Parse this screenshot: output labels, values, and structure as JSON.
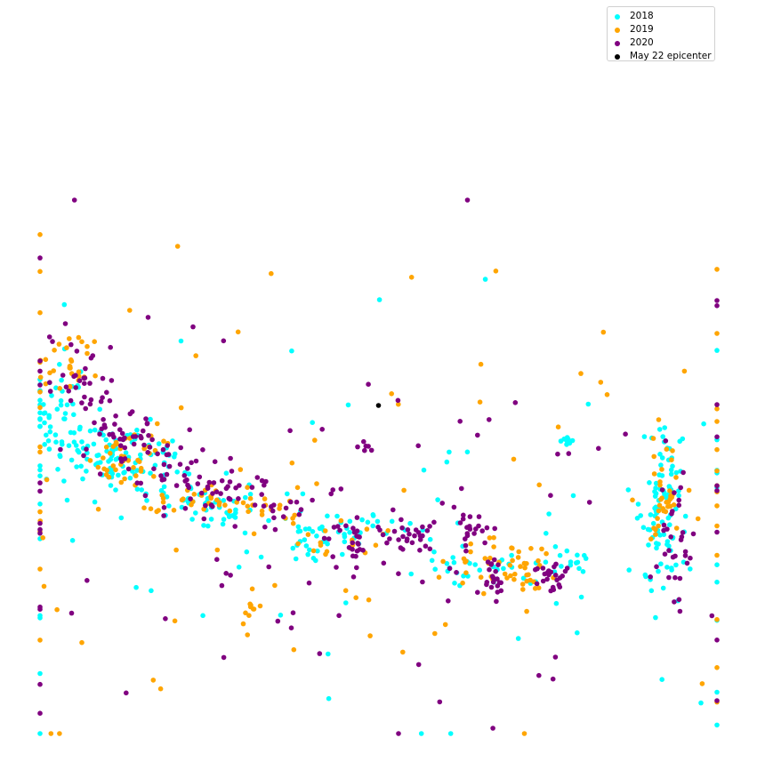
{
  "chart_data": {
    "type": "scatter",
    "title": "",
    "xlabel": "",
    "ylabel": "",
    "axes": "off",
    "grid": false,
    "legend_placement": "top-right",
    "xlim": [
      0,
      100
    ],
    "ylim": [
      0,
      100
    ],
    "series": [
      {
        "name": "2018",
        "color": "#00ffff",
        "approx_count": 470,
        "clusters": [
          {
            "x": 3,
            "y": 58,
            "sx": 2.5,
            "sy": 6,
            "n": 60
          },
          {
            "x": 10,
            "y": 53,
            "sx": 3,
            "sy": 3,
            "n": 50
          },
          {
            "x": 15,
            "y": 50,
            "sx": 4,
            "sy": 3,
            "n": 40
          },
          {
            "x": 23,
            "y": 44,
            "sx": 4,
            "sy": 2,
            "n": 30
          },
          {
            "x": 32,
            "y": 42,
            "sx": 4,
            "sy": 2,
            "n": 20
          },
          {
            "x": 42,
            "y": 38,
            "sx": 3,
            "sy": 2,
            "n": 20
          },
          {
            "x": 50,
            "y": 38,
            "sx": 4,
            "sy": 2,
            "n": 20
          },
          {
            "x": 65,
            "y": 32,
            "sx": 4,
            "sy": 2,
            "n": 25
          },
          {
            "x": 78,
            "y": 32,
            "sx": 5,
            "sy": 2,
            "n": 20
          },
          {
            "x": 92,
            "y": 42,
            "sx": 1.5,
            "sy": 7,
            "n": 85
          },
          {
            "x": 78,
            "y": 55,
            "sx": 0.5,
            "sy": 0.8,
            "n": 8
          },
          {
            "x": 40,
            "y": 35,
            "sx": 1,
            "sy": 1.5,
            "n": 10
          },
          {
            "x": 50,
            "y": 40,
            "sx": 40,
            "sy": 20,
            "n": 80
          }
        ]
      },
      {
        "name": "2019",
        "color": "#ffa500",
        "approx_count": 350,
        "clusters": [
          {
            "x": 4,
            "y": 69,
            "sx": 2,
            "sy": 3,
            "n": 30
          },
          {
            "x": 12,
            "y": 52,
            "sx": 3,
            "sy": 3,
            "n": 40
          },
          {
            "x": 23,
            "y": 44,
            "sx": 4,
            "sy": 2,
            "n": 25
          },
          {
            "x": 33,
            "y": 42,
            "sx": 3,
            "sy": 2,
            "n": 20
          },
          {
            "x": 45,
            "y": 36,
            "sx": 4,
            "sy": 2,
            "n": 15
          },
          {
            "x": 66,
            "y": 32,
            "sx": 3,
            "sy": 3,
            "n": 30
          },
          {
            "x": 72,
            "y": 30,
            "sx": 2,
            "sy": 2,
            "n": 20
          },
          {
            "x": 92,
            "y": 44,
            "sx": 1.5,
            "sy": 5,
            "n": 35
          },
          {
            "x": 31,
            "y": 23,
            "sx": 0.7,
            "sy": 2,
            "n": 10
          },
          {
            "x": 50,
            "y": 45,
            "sx": 40,
            "sy": 22,
            "n": 90
          }
        ]
      },
      {
        "name": "2020",
        "color": "#800080",
        "approx_count": 420,
        "clusters": [
          {
            "x": 6,
            "y": 66,
            "sx": 3,
            "sy": 5,
            "n": 35
          },
          {
            "x": 12,
            "y": 54,
            "sx": 3,
            "sy": 3,
            "n": 45
          },
          {
            "x": 20,
            "y": 48,
            "sx": 4,
            "sy": 3,
            "n": 40
          },
          {
            "x": 28,
            "y": 45,
            "sx": 3,
            "sy": 2,
            "n": 20
          },
          {
            "x": 36,
            "y": 42,
            "sx": 3,
            "sy": 2,
            "n": 15
          },
          {
            "x": 47,
            "y": 36,
            "sx": 2,
            "sy": 2,
            "n": 30
          },
          {
            "x": 55,
            "y": 37,
            "sx": 2,
            "sy": 1.5,
            "n": 25
          },
          {
            "x": 64,
            "y": 38,
            "sx": 1.5,
            "sy": 1.5,
            "n": 20
          },
          {
            "x": 67,
            "y": 30,
            "sx": 1,
            "sy": 2,
            "n": 20
          },
          {
            "x": 76,
            "y": 29,
            "sx": 1.5,
            "sy": 2,
            "n": 25
          },
          {
            "x": 94,
            "y": 37,
            "sx": 1.5,
            "sy": 7,
            "n": 30
          },
          {
            "x": 48,
            "y": 54,
            "sx": 0.5,
            "sy": 0.5,
            "n": 6
          },
          {
            "x": 50,
            "y": 42,
            "sx": 40,
            "sy": 22,
            "n": 90
          }
        ]
      },
      {
        "name": "May 22 epicenter",
        "color": "#000000",
        "points": [
          {
            "x": 50.0,
            "y": 61.5
          }
        ]
      }
    ]
  }
}
